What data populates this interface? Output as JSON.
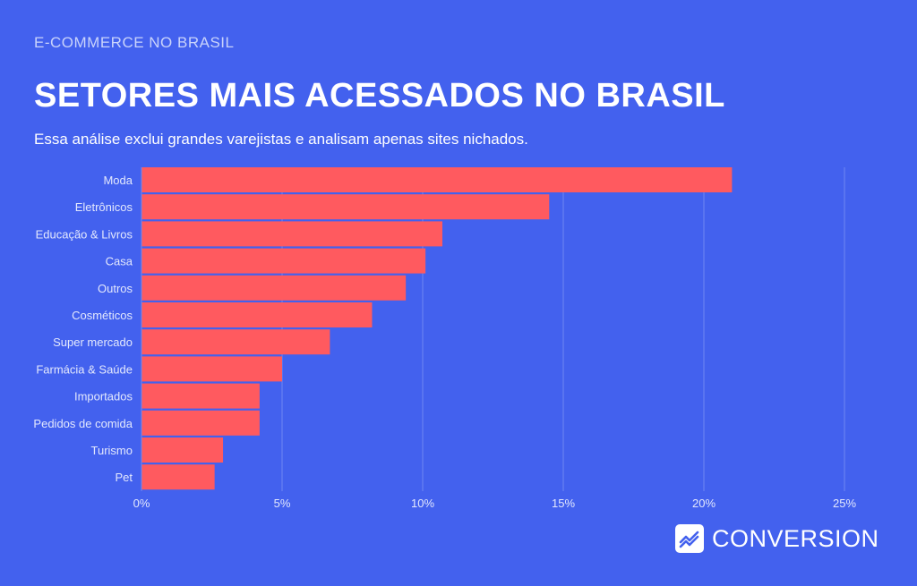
{
  "header": {
    "eyebrow": "E-COMMERCE NO BRASIL",
    "title": "SETORES MAIS ACESSADOS NO BRASIL",
    "subtitle": "Essa análise exclui grandes varejistas e analisam apenas sites nichados."
  },
  "brand": {
    "name": "CONVERSION",
    "icon": "chart-line-icon"
  },
  "colors": {
    "background": "#4361EE",
    "bar": "#FF5A5F",
    "gridline": "#6F86F2",
    "label": "#E3E8FD"
  },
  "chart_data": {
    "type": "bar",
    "orientation": "horizontal",
    "categories": [
      "Moda",
      "Eletrônicos",
      "Educação & Livros",
      "Casa",
      "Outros",
      "Cosméticos",
      "Super mercado",
      "Farmácia & Saúde",
      "Importados",
      "Pedidos de comida",
      "Turismo",
      "Pet"
    ],
    "values": [
      21.0,
      14.5,
      10.7,
      10.1,
      9.4,
      8.2,
      6.7,
      5.0,
      4.2,
      4.2,
      2.9,
      2.6
    ],
    "xlim": [
      0,
      25
    ],
    "xticks": [
      0,
      5,
      10,
      15,
      20,
      25
    ],
    "xtick_labels": [
      "0%",
      "5%",
      "10%",
      "15%",
      "20%",
      "25%"
    ],
    "grid": true,
    "legend": "none"
  }
}
